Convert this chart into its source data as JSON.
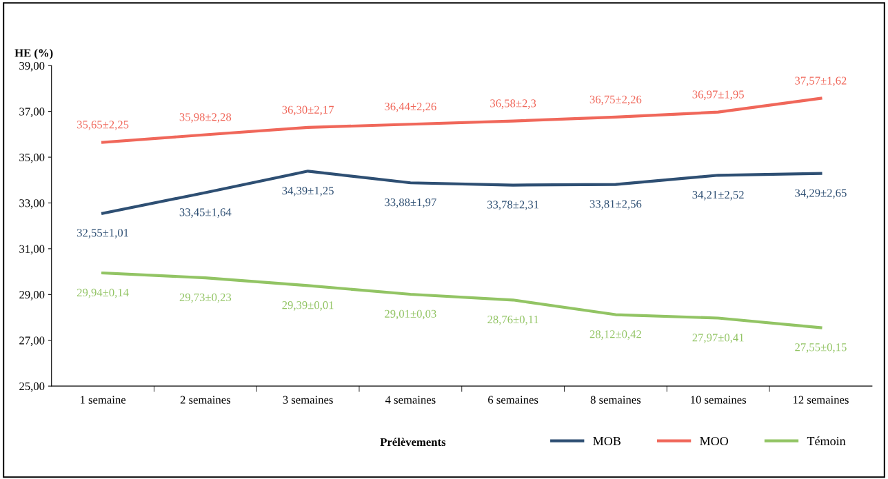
{
  "chart_data": {
    "type": "line",
    "ylabel": "HE (%)",
    "xlabel": "Prélèvements",
    "categories": [
      "1 semaine",
      "2 semaines",
      "3 semaines",
      "4 semaines",
      "6 semaines",
      "8 semaines",
      "10 semaines",
      "12 semaines"
    ],
    "series": [
      {
        "name": "MOB",
        "color": "#2e4f73",
        "values": [
          32.55,
          33.45,
          34.39,
          33.88,
          33.78,
          33.81,
          34.21,
          34.29
        ],
        "value_labels": [
          "32,55±1,01",
          "33,45±1,64",
          "34,39±1,25",
          "33,88±1,97",
          "33,78±2,31",
          "33,81±2,56",
          "34,21±2,52",
          "34,29±2,65"
        ]
      },
      {
        "name": "MOO",
        "color": "#f0675a",
        "values": [
          35.65,
          35.98,
          36.3,
          36.44,
          36.58,
          36.75,
          36.97,
          37.57
        ],
        "value_labels": [
          "35,65±2,25",
          "35,98±2,28",
          "36,30±2,17",
          "36,44±2,26",
          "36,58±2,3",
          "36,75±2,26",
          "36,97±1,95",
          "37,57±1,62"
        ]
      },
      {
        "name": "Témoin",
        "color": "#92c464",
        "values": [
          29.94,
          29.73,
          29.39,
          29.01,
          28.76,
          28.12,
          27.97,
          27.55
        ],
        "value_labels": [
          "29,94±0,14",
          "29,73±0,23",
          "29,39±0,01",
          "29,01±0,03",
          "28,76±0,11",
          "28,12±0,42",
          "27,97±0,41",
          "27,55±0,15"
        ]
      }
    ],
    "ylim": [
      25,
      39
    ],
    "yticks": [
      {
        "value": 25,
        "label": "25,00"
      },
      {
        "value": 27,
        "label": "27,00"
      },
      {
        "value": 29,
        "label": "29,00"
      },
      {
        "value": 31,
        "label": "31,00"
      },
      {
        "value": 33,
        "label": "33,00"
      },
      {
        "value": 35,
        "label": "35,00"
      },
      {
        "value": 37,
        "label": "37,00"
      },
      {
        "value": 39,
        "label": "39,00"
      }
    ],
    "grid": false,
    "legend": "bottom right",
    "marker": "none",
    "line_style": "solid"
  }
}
